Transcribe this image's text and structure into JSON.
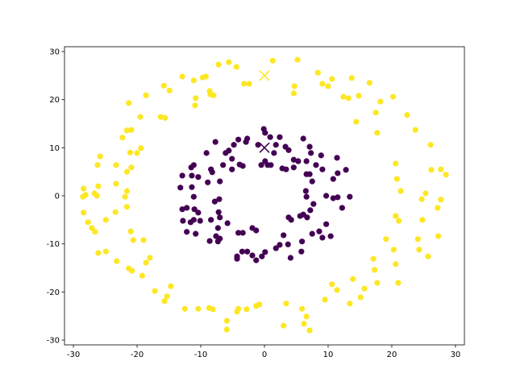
{
  "chart_data": {
    "type": "scatter",
    "title": "",
    "xlabel": "",
    "ylabel": "",
    "xlim": [
      -31.4,
      31.4
    ],
    "ylim": [
      -31,
      31
    ],
    "xticks": [
      -30,
      -20,
      -10,
      0,
      10,
      20,
      30
    ],
    "yticks": [
      -30,
      -20,
      -10,
      0,
      10,
      20,
      30
    ],
    "grid": false,
    "colors": {
      "class_0": "#440154",
      "class_1": "#fde725"
    },
    "series": [
      {
        "color": "#fde725",
        "marker": "circle",
        "points": [
          [
            1.3,
            28.1
          ],
          [
            5.2,
            28.3
          ],
          [
            -5.6,
            27.8
          ],
          [
            -4.4,
            26.8
          ],
          [
            -7.2,
            27.3
          ],
          [
            -3.2,
            23.3
          ],
          [
            -2.4,
            23.3
          ],
          [
            4.7,
            22.8
          ],
          [
            4.6,
            21.3
          ],
          [
            8.4,
            25.6
          ],
          [
            9.1,
            23.3
          ],
          [
            10,
            22.8
          ],
          [
            10.6,
            24.3
          ],
          [
            13.7,
            24.5
          ],
          [
            12.4,
            20.6
          ],
          [
            13.2,
            20.3
          ],
          [
            14.8,
            20.8
          ],
          [
            16.5,
            23.5
          ],
          [
            18.2,
            19.6
          ],
          [
            20.2,
            20.6
          ],
          [
            22.4,
            16.8
          ],
          [
            17.5,
            17.3
          ],
          [
            14.4,
            15.4
          ],
          [
            17.7,
            13.1
          ],
          [
            23.7,
            13.7
          ],
          [
            26.1,
            10.6
          ],
          [
            20.6,
            6.7
          ],
          [
            26.2,
            5.4
          ],
          [
            27.7,
            5.5
          ],
          [
            28.5,
            4.4
          ],
          [
            20.8,
            3.5
          ],
          [
            21.4,
            1
          ],
          [
            25.3,
            0.5
          ],
          [
            24.7,
            -0.7
          ],
          [
            27.7,
            -0.8
          ],
          [
            27.2,
            -2.5
          ],
          [
            20.6,
            -4.2
          ],
          [
            21.1,
            -5.2
          ],
          [
            24.8,
            -5
          ],
          [
            27.3,
            -8.4
          ],
          [
            24.1,
            -9
          ],
          [
            19.1,
            -9
          ],
          [
            20.3,
            -11.2
          ],
          [
            24.3,
            -11.2
          ],
          [
            25.7,
            -12.6
          ],
          [
            20.6,
            -14.2
          ],
          [
            17.1,
            -13.1
          ],
          [
            17.3,
            -15.4
          ],
          [
            21,
            -18.1
          ],
          [
            17.7,
            -18.1
          ],
          [
            13.9,
            -17.3
          ],
          [
            15.7,
            -19.3
          ],
          [
            10.6,
            -18.4
          ],
          [
            11.4,
            -19.6
          ],
          [
            13.4,
            -22.4
          ],
          [
            15.1,
            -21.1
          ],
          [
            9.5,
            -21.6
          ],
          [
            5.9,
            -23.5
          ],
          [
            6.6,
            -25.1
          ],
          [
            6.2,
            -26.6
          ],
          [
            7.1,
            -28
          ],
          [
            3.4,
            -22.4
          ],
          [
            3.0,
            -27
          ],
          [
            -0.8,
            -22.6
          ],
          [
            -1.3,
            -22.9
          ],
          [
            -2.8,
            -23.6
          ],
          [
            -4.1,
            -23.5
          ],
          [
            -4.3,
            -24.1
          ],
          [
            -5.9,
            -26
          ],
          [
            -5.9,
            -27.8
          ],
          [
            -8.1,
            -23.6
          ],
          [
            -8.7,
            -23.3
          ],
          [
            -10.4,
            -23.5
          ],
          [
            -12.5,
            -23.5
          ],
          [
            -15.7,
            -21.9
          ],
          [
            -15.3,
            -20.9
          ],
          [
            -14.7,
            -18.8
          ],
          [
            -17.2,
            -19.8
          ],
          [
            -19.2,
            -16.6
          ],
          [
            -21.3,
            -15.1
          ],
          [
            -20.8,
            -15.6
          ],
          [
            -18,
            -12.9
          ],
          [
            -18.6,
            -13.9
          ],
          [
            -23.2,
            -13.6
          ],
          [
            -24.9,
            -11.6
          ],
          [
            -26.1,
            -11.9
          ],
          [
            -20.6,
            -9.2
          ],
          [
            -19,
            -9.2
          ],
          [
            -21,
            -7.4
          ],
          [
            -26.6,
            -7.5
          ],
          [
            -27.1,
            -6.7
          ],
          [
            -27.7,
            -5.5
          ],
          [
            -24.9,
            -5
          ],
          [
            -23.4,
            -3.4
          ],
          [
            -21.6,
            -2.3
          ],
          [
            -28.4,
            -3.5
          ],
          [
            -28.1,
            0.2
          ],
          [
            -28.5,
            -0.2
          ],
          [
            -26.3,
            0
          ],
          [
            -26.7,
            0.5
          ],
          [
            -21.6,
            1
          ],
          [
            -21.9,
            -0.2
          ],
          [
            -28.4,
            1.5
          ],
          [
            -26.1,
            2
          ],
          [
            -23.3,
            2.5
          ],
          [
            -21.6,
            5
          ],
          [
            -20.9,
            5.9
          ],
          [
            -23.3,
            6.4
          ],
          [
            -26.2,
            6.4
          ],
          [
            -25.8,
            8.2
          ],
          [
            -21.1,
            9
          ],
          [
            -19.4,
            9.9
          ],
          [
            -20,
            8.9
          ],
          [
            -22.3,
            12.1
          ],
          [
            -21.6,
            13.6
          ],
          [
            -20.9,
            13.7
          ],
          [
            -19.5,
            16.4
          ],
          [
            -21.3,
            19.3
          ],
          [
            -18.6,
            20.9
          ],
          [
            -16.3,
            16.4
          ],
          [
            -15.6,
            16.2
          ],
          [
            -15.8,
            22.9
          ],
          [
            -14.9,
            21.9
          ],
          [
            -12.9,
            24.8
          ],
          [
            -11.1,
            24
          ],
          [
            -9.7,
            24.6
          ],
          [
            -9.2,
            24.8
          ],
          [
            -10.8,
            20.3
          ],
          [
            -10.9,
            18.8
          ],
          [
            -8.6,
            21.8
          ],
          [
            -8,
            20.9
          ],
          [
            -8.5,
            21.1
          ]
        ]
      },
      {
        "color": "#440154",
        "marker": "circle",
        "points": [
          [
            -0.1,
            13.9
          ],
          [
            0.1,
            13.1
          ],
          [
            0.9,
            12.2
          ],
          [
            -2.7,
            11.9
          ],
          [
            -2.9,
            11.2
          ],
          [
            -1,
            10.6
          ],
          [
            1.8,
            10.6
          ],
          [
            2.4,
            12.2
          ],
          [
            3.3,
            10.2
          ],
          [
            3.8,
            9.5
          ],
          [
            6.1,
            11.9
          ],
          [
            7.1,
            10.2
          ],
          [
            7.3,
            8.9
          ],
          [
            6.6,
            7.2
          ],
          [
            8.9,
            8.4
          ],
          [
            8.1,
            6.4
          ],
          [
            9.1,
            5.5
          ],
          [
            11.4,
            7.9
          ],
          [
            11.5,
            4.7
          ],
          [
            12.8,
            5.4
          ],
          [
            10.8,
            3.5
          ],
          [
            6.6,
            4.5
          ],
          [
            7.1,
            4.5
          ],
          [
            7.5,
            3
          ],
          [
            6.5,
            1
          ],
          [
            6.6,
            -0.2
          ],
          [
            9.7,
            0.0
          ],
          [
            10.8,
            -0.5
          ],
          [
            11.5,
            -0.3
          ],
          [
            13.4,
            -0.2
          ],
          [
            12.2,
            -2.5
          ],
          [
            7.7,
            -1.7
          ],
          [
            7.2,
            -3
          ],
          [
            6.1,
            -3.9
          ],
          [
            6.7,
            -4.5
          ],
          [
            5.6,
            -4.2
          ],
          [
            3.8,
            -4.5
          ],
          [
            4.2,
            -5
          ],
          [
            9.7,
            -5.9
          ],
          [
            8.6,
            -7.4
          ],
          [
            7.5,
            -7.9
          ],
          [
            10.4,
            -8.4
          ],
          [
            9.1,
            -8.7
          ],
          [
            5.9,
            -9.5
          ],
          [
            3,
            -8.2
          ],
          [
            3.7,
            -10.1
          ],
          [
            2.4,
            -10.2
          ],
          [
            1.8,
            -10.9
          ],
          [
            4.1,
            -12.9
          ],
          [
            5.8,
            -11.6
          ],
          [
            0.1,
            -11.7
          ],
          [
            -0.4,
            -12.6
          ],
          [
            -1.9,
            -12.4
          ],
          [
            -1.3,
            -13.4
          ],
          [
            -2.7,
            -11.6
          ],
          [
            -3.5,
            -11.6
          ],
          [
            -4.3,
            -12.6
          ],
          [
            -4.3,
            -13.1
          ],
          [
            -3.4,
            -7.7
          ],
          [
            -4.1,
            -7.7
          ],
          [
            -1.9,
            -6.7
          ],
          [
            -1.3,
            -7.2
          ],
          [
            -5.8,
            -5.7
          ],
          [
            -7.3,
            -6.7
          ],
          [
            -7.6,
            -8.4
          ],
          [
            -8.6,
            -9.4
          ],
          [
            -7.3,
            -9.5
          ],
          [
            -7,
            -8.9
          ],
          [
            -10.8,
            -7.9
          ],
          [
            -12.2,
            -7.5
          ],
          [
            -11.6,
            -5.5
          ],
          [
            -12.8,
            -5.2
          ],
          [
            -11.1,
            -5
          ],
          [
            -10.1,
            -5.2
          ],
          [
            -8.4,
            -5
          ],
          [
            -7.2,
            -3.4
          ],
          [
            -7,
            -4.5
          ],
          [
            -12.9,
            -2.8
          ],
          [
            -12.2,
            -2.5
          ],
          [
            -11,
            -2.8
          ],
          [
            -10.4,
            -3.5
          ],
          [
            -7.8,
            -1.2
          ],
          [
            -7.1,
            -0.7
          ],
          [
            -11.1,
            -0.2
          ],
          [
            -11.4,
            1.8
          ],
          [
            -13.2,
            1.7
          ],
          [
            -12.9,
            4.2
          ],
          [
            -11.4,
            4.2
          ],
          [
            -10.4,
            3.9
          ],
          [
            -8.9,
            2.8
          ],
          [
            -7,
            3
          ],
          [
            -8.4,
            5.5
          ],
          [
            -8.2,
            4.9
          ],
          [
            -11.1,
            6.4
          ],
          [
            -11.5,
            5.9
          ],
          [
            -9.1,
            8.9
          ],
          [
            -7.7,
            11.2
          ],
          [
            -6.1,
            8.9
          ],
          [
            -5.6,
            9.4
          ],
          [
            -5.1,
            7.7
          ],
          [
            -6.5,
            6.4
          ],
          [
            -5.1,
            5.5
          ],
          [
            -3.9,
            6.5
          ],
          [
            -3.4,
            6.2
          ],
          [
            -4.8,
            10.6
          ],
          [
            -4.1,
            11.7
          ],
          [
            -0.5,
            6.4
          ],
          [
            0.1,
            7.2
          ],
          [
            1,
            6.4
          ],
          [
            0.5,
            6.4
          ],
          [
            2.8,
            5.7
          ],
          [
            3.4,
            5.5
          ],
          [
            4.6,
            5.9
          ],
          [
            5.3,
            7.2
          ],
          [
            1.5,
            8.9
          ],
          [
            4.6,
            7.5
          ]
        ]
      }
    ],
    "centers": [
      {
        "color": "#fde725",
        "marker": "x",
        "point": [
          0,
          25
        ]
      },
      {
        "color": "#440154",
        "marker": "x",
        "point": [
          0,
          10
        ]
      }
    ]
  }
}
